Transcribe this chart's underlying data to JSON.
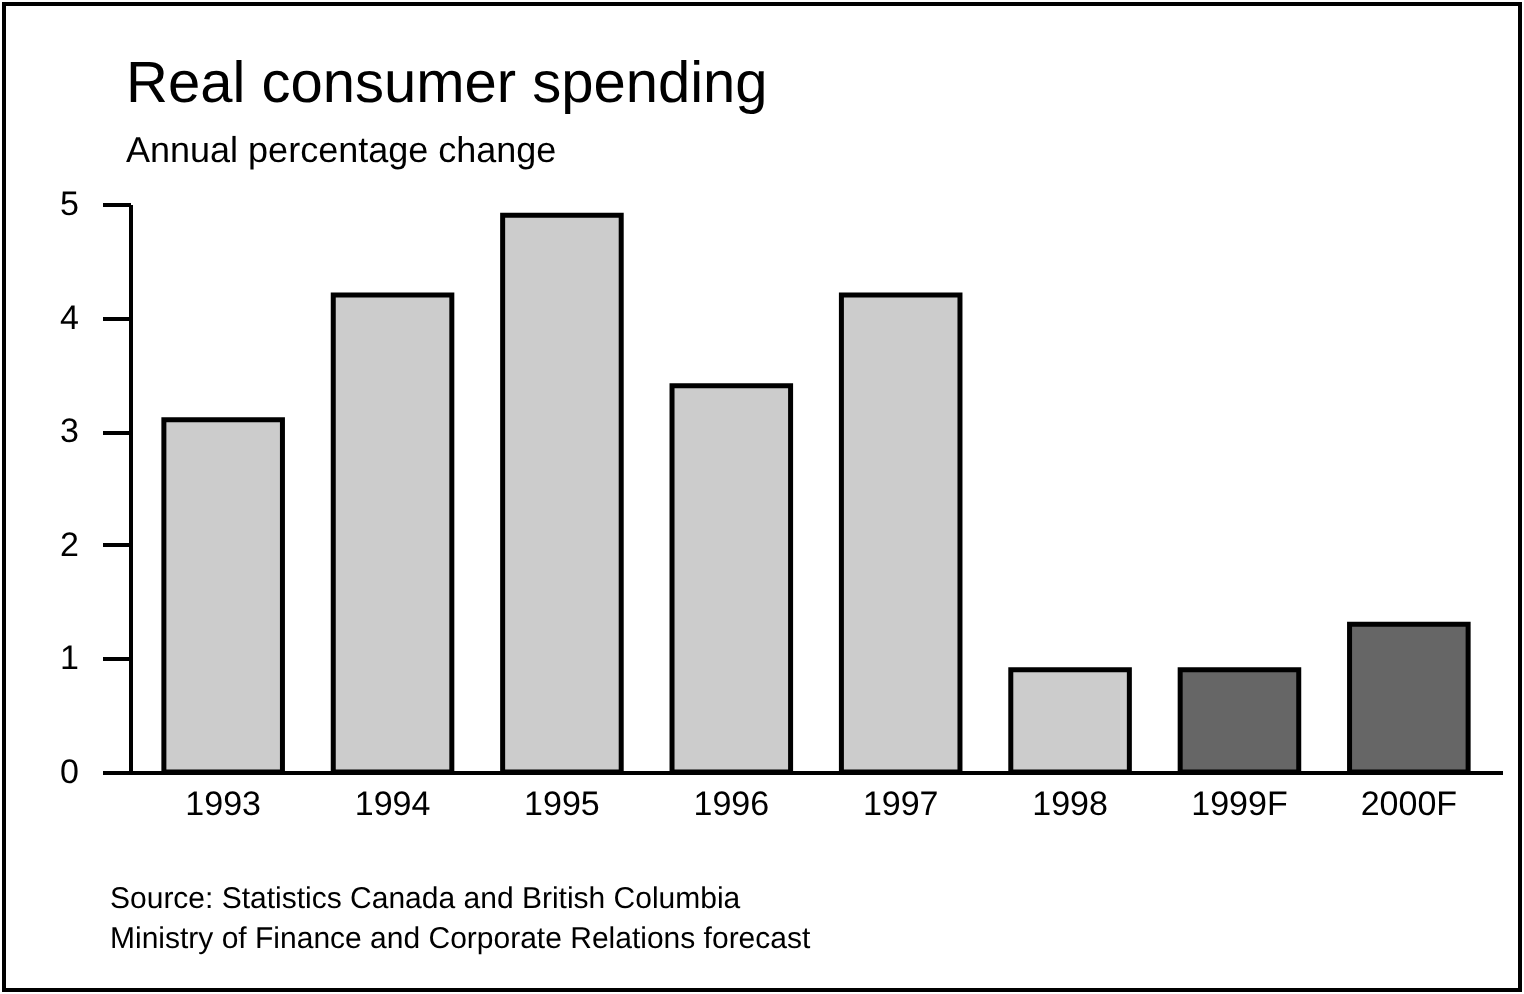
{
  "chart_data": {
    "type": "bar",
    "title": "Real consumer spending",
    "subtitle": "Annual percentage change",
    "categories": [
      "1993",
      "1994",
      "1995",
      "1996",
      "1997",
      "1998",
      "1999F",
      "2000F"
    ],
    "values": [
      3.1,
      4.2,
      4.9,
      3.4,
      4.2,
      0.9,
      0.9,
      1.3
    ],
    "colors": [
      "#cccccc",
      "#cccccc",
      "#cccccc",
      "#cccccc",
      "#cccccc",
      "#cccccc",
      "#666666",
      "#666666"
    ],
    "ylim": [
      0,
      5
    ],
    "yticks": [
      0,
      1,
      2,
      3,
      4,
      5
    ],
    "annotations": [
      "Source: Statistics Canada and British Columbia",
      "Ministry of Finance and Corporate Relations forecast"
    ]
  }
}
